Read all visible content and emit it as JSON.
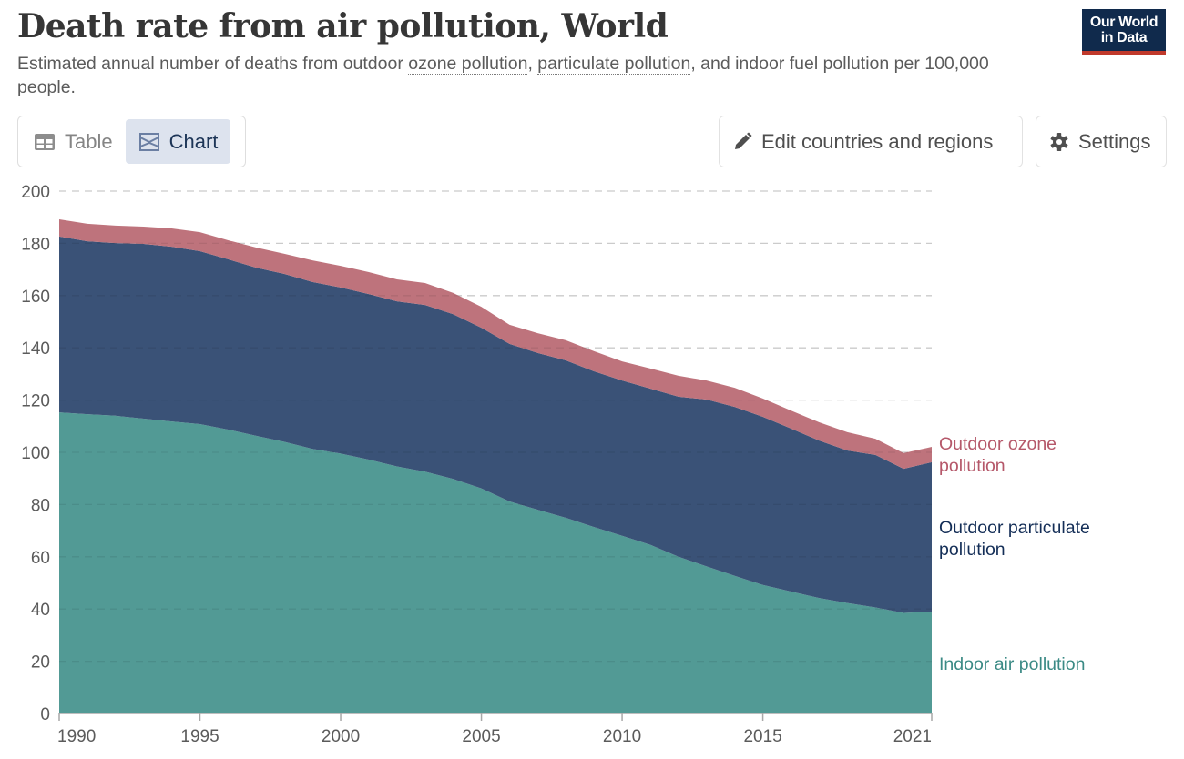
{
  "header": {
    "title": "Death rate from air pollution, World",
    "subtitle_parts": [
      {
        "text": "Estimated annual number of deaths from outdoor ",
        "link": false
      },
      {
        "text": "ozone pollution",
        "link": true
      },
      {
        "text": ", ",
        "link": false
      },
      {
        "text": "particulate pollution",
        "link": true
      },
      {
        "text": ", and indoor fuel pollution per 100,000 people.",
        "link": false
      }
    ],
    "logo_line1": "Our World",
    "logo_line2": "in Data"
  },
  "toolbar": {
    "tabs": [
      {
        "label": "Table",
        "icon": "table-icon",
        "active": false
      },
      {
        "label": "Chart",
        "icon": "chart-icon",
        "active": true
      }
    ],
    "edit_label": "Edit countries and regions",
    "edit_icon": "pencil-icon",
    "settings_label": "Settings",
    "settings_icon": "gear-icon"
  },
  "colors": {
    "indoor": "#529a95",
    "particulate": "#3a5277",
    "ozone": "#be737c",
    "indoor_label": "#3b8a85",
    "particulate_label": "#142e57",
    "ozone_label": "#b5586a",
    "grid": "#dddddd",
    "axis": "#a8a8a8"
  },
  "chart_data": {
    "type": "area",
    "stacked": true,
    "title": "Death rate from air pollution, World",
    "xlabel": "",
    "ylabel": "",
    "x": [
      1990,
      1991,
      1992,
      1993,
      1994,
      1995,
      1996,
      1997,
      1998,
      1999,
      2000,
      2001,
      2002,
      2003,
      2004,
      2005,
      2006,
      2007,
      2008,
      2009,
      2010,
      2011,
      2012,
      2013,
      2014,
      2015,
      2016,
      2017,
      2018,
      2019,
      2020,
      2021
    ],
    "xticks": [
      1990,
      1995,
      2000,
      2005,
      2010,
      2015,
      2021
    ],
    "yticks": [
      0,
      20,
      40,
      60,
      80,
      100,
      120,
      140,
      160,
      180,
      200
    ],
    "ylim": [
      0,
      200
    ],
    "xlim": [
      1990,
      2021
    ],
    "grid": "horizontal-dashed",
    "legend": "right-inline",
    "series": [
      {
        "name": "Indoor air pollution",
        "key": "indoor",
        "values": [
          115.3,
          114.6,
          114.0,
          112.9,
          111.8,
          110.8,
          108.7,
          106.3,
          104.0,
          101.3,
          99.5,
          97.2,
          94.6,
          92.6,
          89.8,
          86.2,
          81.2,
          78.0,
          74.9,
          71.4,
          68.0,
          64.6,
          60.0,
          56.3,
          52.7,
          49.2,
          46.7,
          44.2,
          42.3,
          40.6,
          38.5,
          39.0
        ]
      },
      {
        "name": "Outdoor particulate pollution",
        "key": "particulate",
        "values": [
          67.3,
          66.2,
          66.1,
          66.9,
          66.9,
          66.2,
          65.2,
          64.4,
          64.3,
          63.9,
          63.6,
          63.4,
          63.2,
          63.8,
          63.1,
          61.5,
          60.3,
          60.0,
          60.3,
          59.6,
          59.5,
          59.8,
          61.3,
          63.9,
          64.7,
          64.4,
          62.4,
          60.3,
          58.4,
          58.4,
          55.2,
          57.2
        ]
      },
      {
        "name": "Outdoor ozone pollution",
        "key": "ozone",
        "values": [
          6.6,
          6.7,
          6.7,
          6.6,
          7.0,
          7.3,
          7.3,
          7.7,
          7.7,
          8.3,
          8.3,
          8.4,
          8.4,
          8.4,
          8.1,
          8.0,
          7.3,
          7.6,
          7.7,
          7.7,
          7.3,
          7.7,
          8.0,
          7.3,
          7.3,
          7.0,
          6.9,
          7.0,
          7.0,
          6.2,
          6.0,
          5.9
        ]
      }
    ],
    "series_labels": [
      {
        "key": "ozone",
        "lines": [
          "Outdoor ozone",
          "pollution"
        ]
      },
      {
        "key": "particulate",
        "lines": [
          "Outdoor particulate",
          "pollution"
        ]
      },
      {
        "key": "indoor",
        "lines": [
          "Indoor air pollution"
        ]
      }
    ]
  }
}
